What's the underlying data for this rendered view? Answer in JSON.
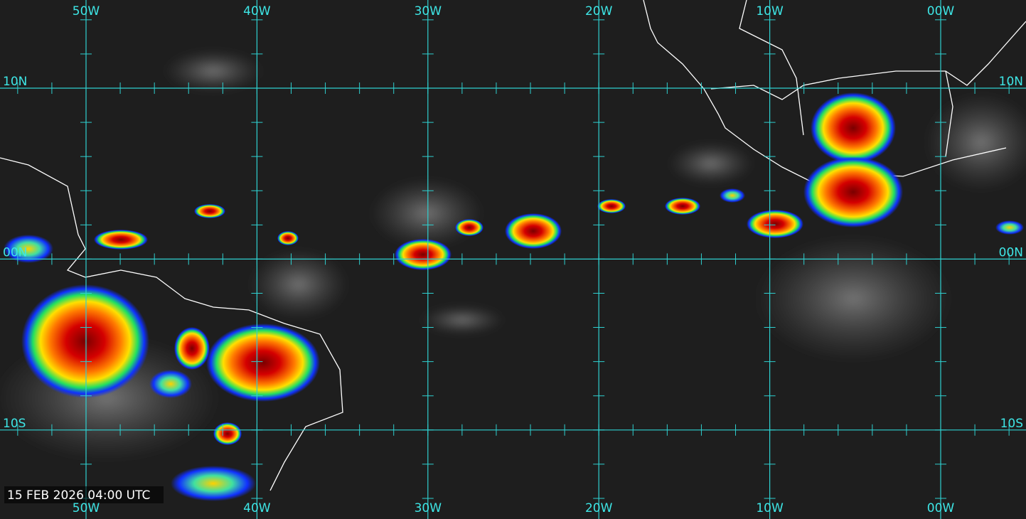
{
  "longitude_labels": [
    "50W",
    "40W",
    "30W",
    "20W",
    "10W",
    "00W"
  ],
  "latitude_labels": [
    "10N",
    "00N",
    "10S"
  ],
  "timestamp": "15 FEB 2026 04:00 UTC"
}
